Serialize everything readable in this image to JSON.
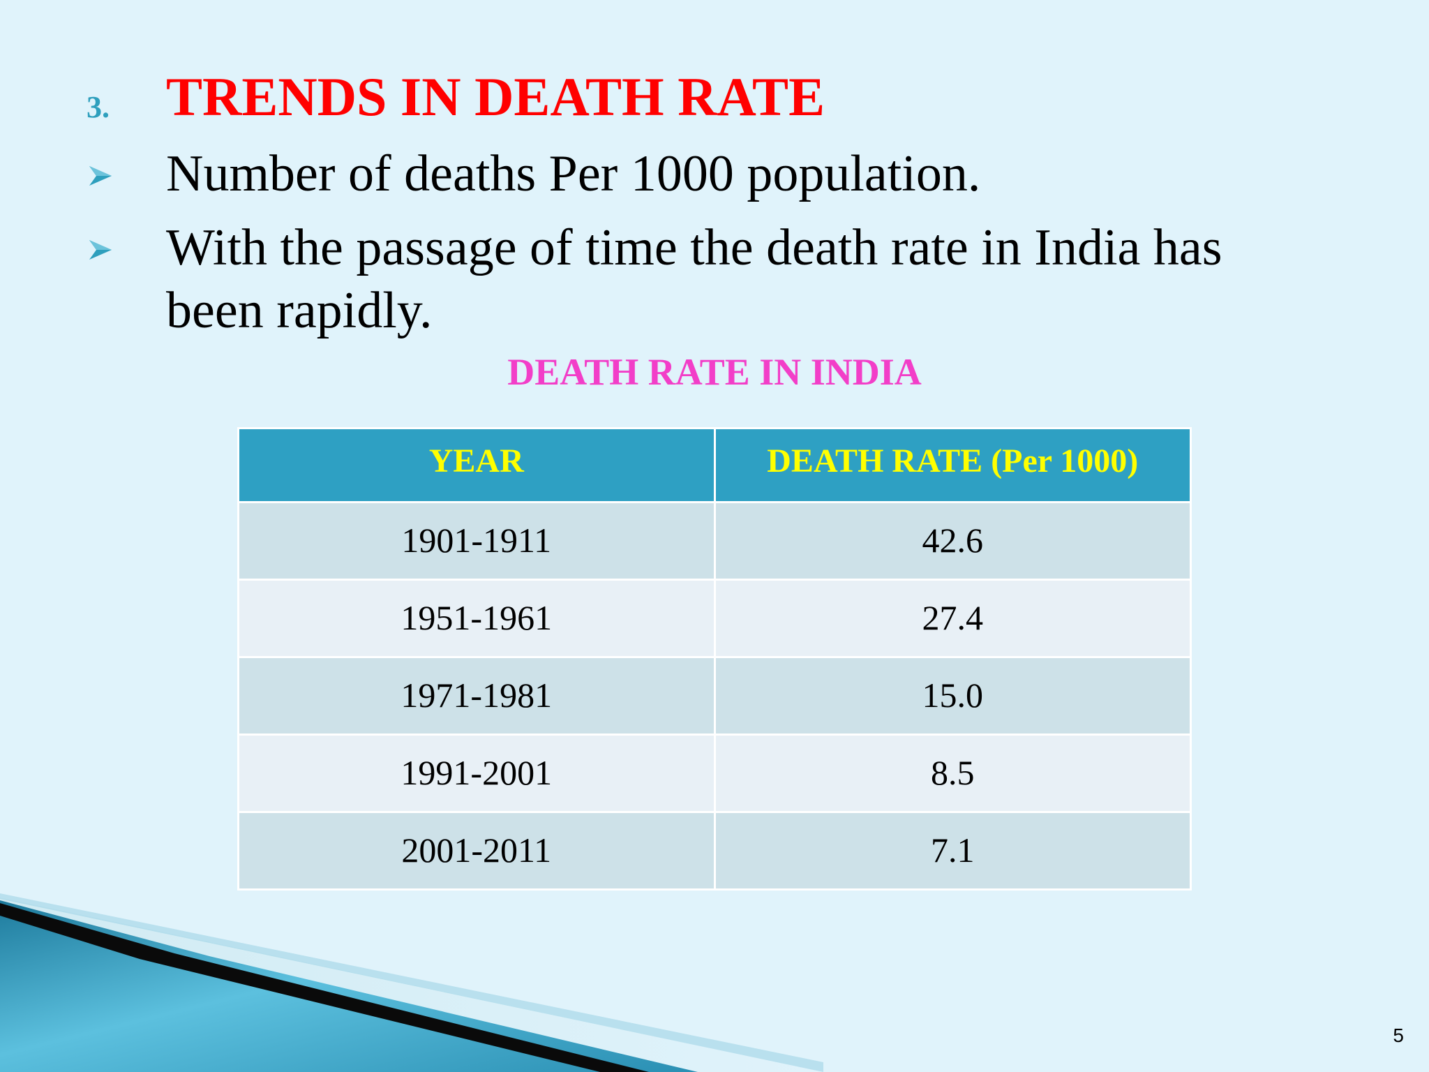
{
  "slide": {
    "number_label": "3.",
    "heading": "TRENDS IN DEATH RATE",
    "bullets": [
      "Number of deaths Per 1000 population.",
      "With the passage of time the death rate in India has been rapidly."
    ],
    "bullet_icon": "arrowhead-bullet-icon",
    "table_title": "DEATH RATE IN INDIA",
    "table": {
      "headers": [
        "YEAR",
        "DEATH RATE (Per 1000)"
      ],
      "rows": [
        [
          "1901-1911",
          "42.6"
        ],
        [
          "1951-1961",
          "27.4"
        ],
        [
          "1971-1981",
          "15.0"
        ],
        [
          "1991-2001",
          "8.5"
        ],
        [
          "2001-2011",
          "7.1"
        ]
      ]
    },
    "page_number": "5"
  },
  "colors": {
    "background": "#e0f3fb",
    "heading": "#ff0000",
    "number_label": "#2e9fbd",
    "table_title": "#f23ec8",
    "table_header_bg": "#2ea0c3",
    "table_header_text": "#ffff00",
    "row_odd": "#cde1e8",
    "row_even": "#e8f0f6"
  }
}
